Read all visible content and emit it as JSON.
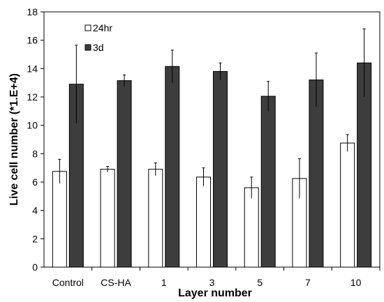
{
  "chart_data": {
    "type": "bar",
    "title": "",
    "xlabel": "Layer number",
    "ylabel": "Live cell number (*1.E+4)",
    "ylim": [
      0,
      18
    ],
    "yticks": [
      0,
      2,
      4,
      6,
      8,
      10,
      12,
      14,
      16,
      18
    ],
    "grid": false,
    "legend_position": "top-left",
    "categories": [
      "Control",
      "CS-HA",
      "1",
      "3",
      "5",
      "7",
      "10"
    ],
    "series": [
      {
        "name": "24hr",
        "color": "#ffffff",
        "values": [
          6.75,
          6.9,
          6.9,
          6.35,
          5.6,
          6.25,
          8.75
        ],
        "errors": [
          0.85,
          0.2,
          0.45,
          0.65,
          0.75,
          1.4,
          0.6
        ]
      },
      {
        "name": "3d",
        "color": "#3d3d3d",
        "values": [
          12.9,
          13.15,
          14.15,
          13.8,
          12.05,
          13.2,
          14.4
        ],
        "errors": [
          2.75,
          0.4,
          1.15,
          0.6,
          1.05,
          1.9,
          2.4
        ]
      }
    ]
  }
}
